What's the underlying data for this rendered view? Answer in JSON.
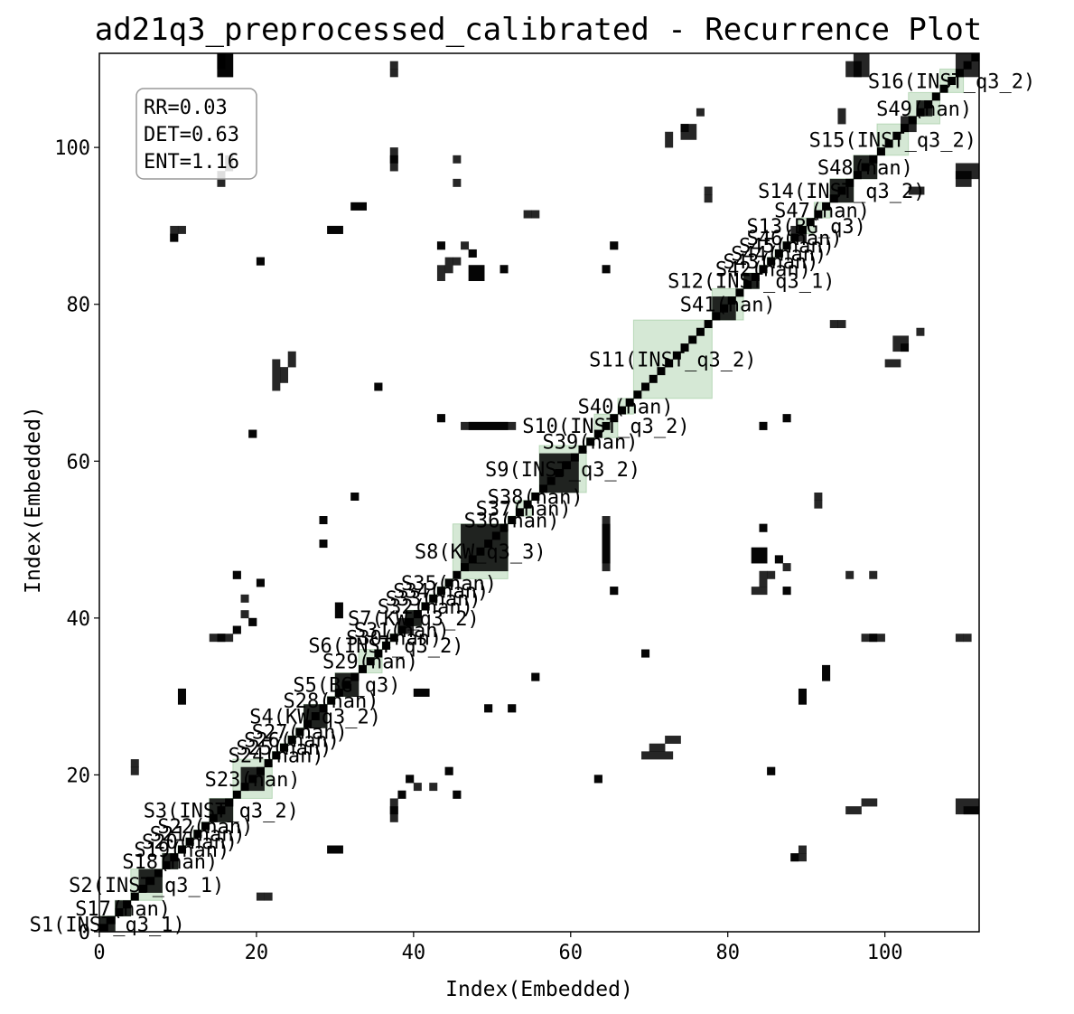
{
  "chart_data": {
    "type": "heatmap",
    "title": "ad21q3_preprocessed_calibrated - Recurrence Plot",
    "xlabel": "Index(Embedded)",
    "ylabel": "Index(Embedded)",
    "xlim": [
      0,
      112
    ],
    "ylim": [
      0,
      112
    ],
    "xticks": [
      0,
      20,
      40,
      60,
      80,
      100
    ],
    "yticks": [
      0,
      20,
      40,
      60,
      80,
      100
    ],
    "stats": [
      "RR=0.03",
      "DET=0.63",
      "ENT=1.16"
    ],
    "colors": {
      "recurrence": "#000000",
      "segment_fill": "#2e8b2e",
      "background": "#ffffff"
    },
    "segments": [
      {
        "label": "S1(INST_q3_1)",
        "start": 0,
        "end": 2
      },
      {
        "label": "S17(nan)",
        "start": 2,
        "end": 4
      },
      {
        "label": "S2(INST_q3_1)",
        "start": 4,
        "end": 8
      },
      {
        "label": "S18(nan)",
        "start": 8,
        "end": 10
      },
      {
        "label": "S19(nan)",
        "start": 10,
        "end": 11
      },
      {
        "label": "S20(nan)",
        "start": 11,
        "end": 12
      },
      {
        "label": "S21(nan)",
        "start": 12,
        "end": 13
      },
      {
        "label": "S22(nan)",
        "start": 13,
        "end": 14
      },
      {
        "label": "S3(INST_q3_2)",
        "start": 14,
        "end": 17
      },
      {
        "label": "S23(nan)",
        "start": 17,
        "end": 22
      },
      {
        "label": "S24(nan)",
        "start": 22,
        "end": 23
      },
      {
        "label": "S25(nan)",
        "start": 23,
        "end": 24
      },
      {
        "label": "S26(nan)",
        "start": 24,
        "end": 25
      },
      {
        "label": "S27(nan)",
        "start": 25,
        "end": 26
      },
      {
        "label": "S4(KW_q3_2)",
        "start": 26,
        "end": 29
      },
      {
        "label": "S28(nan)",
        "start": 29,
        "end": 30
      },
      {
        "label": "S5(BG_q3)",
        "start": 30,
        "end": 33
      },
      {
        "label": "S29(nan)",
        "start": 33,
        "end": 36
      },
      {
        "label": "S6(INST_q3_2)",
        "start": 36,
        "end": 37
      },
      {
        "label": "S30(nan)",
        "start": 37,
        "end": 38
      },
      {
        "label": "S31(nan)",
        "start": 38,
        "end": 39
      },
      {
        "label": "S7(KW_q3_2)",
        "start": 39,
        "end": 41
      },
      {
        "label": "S32(nan)",
        "start": 41,
        "end": 42
      },
      {
        "label": "S33(nan)",
        "start": 42,
        "end": 43
      },
      {
        "label": "S34(nan)",
        "start": 43,
        "end": 44
      },
      {
        "label": "S35(nan)",
        "start": 44,
        "end": 45
      },
      {
        "label": "S8(KW_q3_3)",
        "start": 45,
        "end": 52
      },
      {
        "label": "S36(nan)",
        "start": 52,
        "end": 53
      },
      {
        "label": "S37(nan)",
        "start": 53,
        "end": 55
      },
      {
        "label": "S38(nan)",
        "start": 55,
        "end": 56
      },
      {
        "label": "S9(INST_q3_2)",
        "start": 56,
        "end": 62
      },
      {
        "label": "S39(nan)",
        "start": 62,
        "end": 63
      },
      {
        "label": "S10(INST_q3_2)",
        "start": 63,
        "end": 66
      },
      {
        "label": "S40(nan)",
        "start": 66,
        "end": 68
      },
      {
        "label": "S11(INST_q3_2)",
        "start": 68,
        "end": 78
      },
      {
        "label": "S41(nan)",
        "start": 78,
        "end": 82
      },
      {
        "label": "S12(INST_q3_1)",
        "start": 82,
        "end": 84
      },
      {
        "label": "S42(nan)",
        "start": 84,
        "end": 85
      },
      {
        "label": "S43(nan)",
        "start": 85,
        "end": 86
      },
      {
        "label": "S44(nan)",
        "start": 86,
        "end": 87
      },
      {
        "label": "S45(nan)",
        "start": 87,
        "end": 88
      },
      {
        "label": "S46(nan)",
        "start": 88,
        "end": 89
      },
      {
        "label": "S13(BG_q3)",
        "start": 89,
        "end": 91
      },
      {
        "label": "S47(nan)",
        "start": 91,
        "end": 93
      },
      {
        "label": "S14(INST_q3_2)",
        "start": 93,
        "end": 96
      },
      {
        "label": "S48(nan)",
        "start": 96,
        "end": 99
      },
      {
        "label": "S15(INST_q3_2)",
        "start": 99,
        "end": 103
      },
      {
        "label": "S49(nan)",
        "start": 103,
        "end": 107
      },
      {
        "label": "S16(INST_q3_2)",
        "start": 107,
        "end": 110
      }
    ],
    "recurrence_blocks": [
      [
        0,
        0,
        2,
        2
      ],
      [
        2,
        2,
        2,
        2
      ],
      [
        5,
        5,
        3,
        3
      ],
      [
        8,
        8,
        2,
        2
      ],
      [
        14,
        14,
        3,
        3
      ],
      [
        18,
        18,
        3,
        3
      ],
      [
        26,
        26,
        3,
        3
      ],
      [
        30,
        30,
        3,
        3
      ],
      [
        39,
        39,
        2,
        2
      ],
      [
        46,
        46,
        6,
        6
      ],
      [
        56,
        56,
        5,
        5
      ],
      [
        78,
        78,
        3,
        3
      ],
      [
        82,
        82,
        2,
        2
      ],
      [
        88,
        88,
        2,
        2
      ],
      [
        93,
        93,
        3,
        3
      ],
      [
        96,
        96,
        3,
        3
      ],
      [
        102,
        102,
        2,
        2
      ],
      [
        104,
        104,
        2,
        2
      ],
      [
        109,
        109,
        3,
        3
      ],
      [
        109,
        96,
        3,
        2
      ],
      [
        96,
        109,
        2,
        3
      ],
      [
        109,
        15,
        3,
        2
      ],
      [
        15,
        109,
        2,
        3
      ],
      [
        15,
        109,
        2,
        3
      ],
      [
        16,
        16,
        1,
        1
      ],
      [
        15,
        110,
        1,
        2
      ],
      [
        110,
        15,
        2,
        1
      ],
      [
        95,
        109,
        2,
        2
      ],
      [
        109,
        95,
        2,
        2
      ],
      [
        16,
        97,
        1,
        2
      ],
      [
        97,
        16,
        2,
        1
      ],
      [
        103,
        94,
        2,
        1
      ],
      [
        94,
        103,
        1,
        2
      ],
      [
        74,
        102,
        1,
        1
      ],
      [
        102,
        74,
        1,
        1
      ],
      [
        72,
        100,
        1,
        2
      ],
      [
        100,
        72,
        2,
        1
      ],
      [
        37,
        97,
        1,
        2
      ],
      [
        97,
        37,
        2,
        1
      ],
      [
        37,
        110,
        1,
        1
      ],
      [
        110,
        37,
        1,
        1
      ],
      [
        45,
        98,
        1,
        1
      ],
      [
        98,
        45,
        1,
        1
      ],
      [
        77,
        94,
        1,
        1
      ],
      [
        94,
        77,
        1,
        1
      ],
      [
        32,
        92,
        2,
        1
      ],
      [
        92,
        32,
        1,
        2
      ],
      [
        54,
        91,
        1,
        1
      ],
      [
        91,
        54,
        1,
        1
      ],
      [
        29,
        89,
        2,
        1
      ],
      [
        89,
        29,
        1,
        2
      ],
      [
        9,
        88,
        1,
        2
      ],
      [
        88,
        9,
        2,
        1
      ],
      [
        43,
        87,
        1,
        1
      ],
      [
        87,
        43,
        1,
        1
      ],
      [
        65,
        87,
        1,
        1
      ],
      [
        87,
        65,
        1,
        1
      ],
      [
        46,
        87,
        1,
        1
      ],
      [
        87,
        46,
        1,
        1
      ],
      [
        47,
        86,
        1,
        1
      ],
      [
        86,
        47,
        1,
        1
      ],
      [
        44,
        84,
        1,
        2
      ],
      [
        84,
        44,
        1,
        2
      ],
      [
        20,
        85,
        1,
        1
      ],
      [
        85,
        20,
        1,
        1
      ],
      [
        47,
        83,
        2,
        2
      ],
      [
        83,
        47,
        2,
        2
      ],
      [
        51,
        84,
        1,
        1
      ],
      [
        84,
        51,
        1,
        1
      ],
      [
        64,
        84,
        1,
        1
      ],
      [
        84,
        64,
        1,
        1
      ],
      [
        93,
        77,
        1,
        1
      ],
      [
        77,
        93,
        1,
        1
      ],
      [
        101,
        74,
        2,
        2
      ],
      [
        74,
        101,
        2,
        2
      ],
      [
        104,
        76,
        1,
        1
      ],
      [
        76,
        104,
        1,
        1
      ],
      [
        22,
        69,
        1,
        4
      ],
      [
        69,
        22,
        4,
        1
      ],
      [
        35,
        69,
        1,
        1
      ],
      [
        69,
        35,
        1,
        1
      ],
      [
        47,
        64,
        6,
        1
      ],
      [
        64,
        47,
        1,
        6
      ],
      [
        43,
        65,
        1,
        1
      ],
      [
        65,
        43,
        1,
        1
      ],
      [
        84,
        64,
        1,
        1
      ],
      [
        64,
        84,
        1,
        1
      ],
      [
        87,
        65,
        1,
        1
      ],
      [
        65,
        87,
        1,
        1
      ],
      [
        19,
        63,
        1,
        1
      ],
      [
        63,
        19,
        1,
        1
      ],
      [
        32,
        55,
        1,
        1
      ],
      [
        55,
        32,
        1,
        1
      ],
      [
        91,
        55,
        1,
        1
      ],
      [
        55,
        91,
        1,
        1
      ],
      [
        28,
        52,
        1,
        1
      ],
      [
        52,
        28,
        1,
        1
      ],
      [
        28,
        49,
        1,
        1
      ],
      [
        49,
        28,
        1,
        1
      ],
      [
        64,
        46,
        1,
        6
      ],
      [
        46,
        64,
        6,
        1
      ],
      [
        83,
        47,
        2,
        2
      ],
      [
        47,
        83,
        2,
        2
      ],
      [
        84,
        51,
        1,
        1
      ],
      [
        51,
        84,
        1,
        1
      ],
      [
        86,
        47,
        1,
        1
      ],
      [
        47,
        86,
        1,
        1
      ],
      [
        85,
        45,
        1,
        1
      ],
      [
        45,
        85,
        1,
        1
      ],
      [
        83,
        43,
        2,
        1
      ],
      [
        43,
        83,
        1,
        2
      ],
      [
        87,
        43,
        1,
        1
      ],
      [
        43,
        87,
        1,
        1
      ],
      [
        65,
        43,
        1,
        1
      ],
      [
        43,
        65,
        1,
        1
      ],
      [
        98,
        37,
        2,
        1
      ],
      [
        37,
        98,
        1,
        2
      ],
      [
        95,
        45,
        1,
        1
      ],
      [
        45,
        95,
        1,
        1
      ],
      [
        17,
        45,
        1,
        1
      ],
      [
        45,
        17,
        1,
        1
      ],
      [
        20,
        44,
        1,
        1
      ],
      [
        44,
        20,
        1,
        1
      ],
      [
        18,
        42,
        1,
        1
      ],
      [
        42,
        18,
        1,
        1
      ],
      [
        19,
        39,
        1,
        1
      ],
      [
        39,
        19,
        1,
        1
      ],
      [
        17,
        38,
        1,
        1
      ],
      [
        38,
        17,
        1,
        1
      ],
      [
        14,
        37,
        2,
        1
      ],
      [
        37,
        14,
        1,
        2
      ],
      [
        30,
        40,
        1,
        2
      ],
      [
        40,
        30,
        2,
        1
      ],
      [
        38,
        38,
        2,
        1
      ],
      [
        38,
        38,
        1,
        2
      ],
      [
        69,
        35,
        1,
        1
      ],
      [
        35,
        69,
        1,
        1
      ],
      [
        92,
        32,
        1,
        2
      ],
      [
        32,
        92,
        2,
        1
      ],
      [
        109,
        37,
        1,
        1
      ],
      [
        37,
        109,
        1,
        1
      ],
      [
        55,
        32,
        1,
        1
      ],
      [
        32,
        55,
        1,
        1
      ],
      [
        40,
        30,
        2,
        1
      ],
      [
        30,
        40,
        1,
        2
      ],
      [
        10,
        29,
        1,
        2
      ],
      [
        29,
        10,
        2,
        1
      ],
      [
        89,
        29,
        1,
        2
      ],
      [
        29,
        89,
        2,
        1
      ],
      [
        49,
        28,
        1,
        1
      ],
      [
        28,
        49,
        1,
        1
      ],
      [
        52,
        28,
        1,
        1
      ],
      [
        28,
        52,
        1,
        1
      ],
      [
        70,
        23,
        2,
        1
      ],
      [
        23,
        70,
        1,
        2
      ],
      [
        72,
        24,
        2,
        1
      ],
      [
        24,
        72,
        1,
        2
      ],
      [
        4,
        21,
        1,
        1
      ],
      [
        21,
        4,
        1,
        1
      ],
      [
        39,
        19,
        1,
        1
      ],
      [
        19,
        39,
        1,
        1
      ],
      [
        44,
        20,
        1,
        1
      ],
      [
        20,
        44,
        1,
        1
      ],
      [
        63,
        19,
        1,
        1
      ],
      [
        19,
        63,
        1,
        1
      ],
      [
        85,
        20,
        1,
        1
      ],
      [
        20,
        85,
        1,
        1
      ],
      [
        37,
        15,
        1,
        2
      ],
      [
        15,
        37,
        2,
        1
      ],
      [
        38,
        17,
        1,
        1
      ],
      [
        17,
        38,
        1,
        1
      ],
      [
        40,
        18,
        1,
        1
      ],
      [
        18,
        40,
        1,
        1
      ],
      [
        45,
        17,
        1,
        1
      ],
      [
        17,
        45,
        1,
        1
      ],
      [
        95,
        15,
        2,
        1
      ],
      [
        15,
        95,
        1,
        2
      ],
      [
        29,
        10,
        2,
        1
      ],
      [
        10,
        29,
        1,
        2
      ],
      [
        88,
        9,
        1,
        1
      ],
      [
        9,
        88,
        1,
        1
      ],
      [
        89,
        10,
        1,
        1
      ],
      [
        10,
        89,
        1,
        1
      ],
      [
        20,
        4,
        1,
        1
      ],
      [
        4,
        20,
        1,
        1
      ]
    ]
  }
}
